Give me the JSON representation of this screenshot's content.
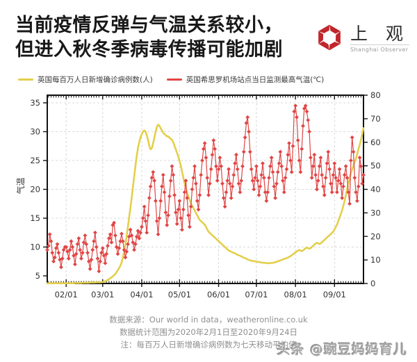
{
  "header": {
    "title_line1": "当前疫情反弹与气温关系较小，",
    "title_line2": "但进入秋冬季病毒传播可能加剧",
    "logo": {
      "cn": "上 观",
      "en": "Shanghai Observer",
      "brand_color": "#c0272d"
    }
  },
  "legend": [
    {
      "label": "英国每百万人日新增确诊病例数(人)",
      "color": "#e3cf4a"
    },
    {
      "label": "英国希思罗机场站点当日监测最高气温(℃)",
      "color": "#e04545"
    }
  ],
  "footer": {
    "line1": "数据来源：Our world in data，weatheronline.co.uk",
    "line2": "数据统计范围为2020年2月1日至2020年9月24日",
    "line3": "注：每百万人日新增确诊病例数为七天移动平均值"
  },
  "watermark": "头条 @豌豆妈妈育儿",
  "chart_data": {
    "type": "line",
    "title": "",
    "xlabel": "",
    "x_tick_labels": [
      "02/01",
      "03/01",
      "04/01",
      "05/01",
      "06/01",
      "07/01",
      "08/01",
      "09/01"
    ],
    "x_tick_day_offsets": [
      0,
      29,
      60,
      90,
      121,
      151,
      182,
      213
    ],
    "x_domain_days": [
      -15,
      236
    ],
    "x_date_range": [
      "2020-02-01",
      "2020-09-24"
    ],
    "grid": true,
    "grid_color": "#cccccc",
    "legend_position": "top-left",
    "left_axis": {
      "label": "气温",
      "ticks": [
        5,
        10,
        15,
        20,
        25,
        30,
        35
      ],
      "units": "℃"
    },
    "right_axis": {
      "label": "",
      "ticks": [
        0,
        10,
        20,
        30,
        40,
        50,
        60,
        70,
        80
      ],
      "range": [
        0,
        80
      ]
    },
    "series": [
      {
        "name": "英国每百万人日新增确诊病例数(人)",
        "axis": "right",
        "color": "#e3cf4a",
        "marker": "none",
        "line_width": 2.6,
        "start_day": -15,
        "values": [
          0.1,
          0.1,
          0.1,
          0.1,
          0.1,
          0.1,
          0.1,
          0.1,
          0.1,
          0.1,
          0.1,
          0.1,
          0.1,
          0.1,
          0.1,
          0.1,
          0.1,
          0.1,
          0.1,
          0.1,
          0.1,
          0.1,
          0.2,
          0.2,
          0.2,
          0.2,
          0.2,
          0.2,
          0.3,
          0.3,
          0.3,
          0.3,
          0.3,
          0.3,
          0.4,
          0.4,
          0.4,
          0.4,
          0.4,
          0.5,
          0.5,
          0.5,
          0.5,
          0.6,
          0.6,
          0.8,
          1.0,
          1.2,
          1.5,
          1.8,
          2.2,
          2.6,
          3.0,
          3.5,
          4.0,
          4.8,
          5.6,
          6.5,
          7.5,
          9.0,
          11.0,
          13.5,
          16.5,
          20.0,
          24.0,
          28.0,
          32.0,
          36.5,
          41.0,
          45.5,
          50.0,
          54.0,
          57.5,
          60.0,
          62.0,
          63.5,
          64.5,
          65.0,
          64.5,
          63.0,
          61.0,
          58.5,
          57.0,
          57.5,
          59.5,
          62.0,
          64.5,
          66.5,
          67.5,
          67.0,
          66.0,
          65.0,
          64.0,
          63.5,
          63.0,
          62.5,
          62.5,
          62.0,
          61.5,
          61.0,
          60.0,
          58.5,
          57.0,
          55.5,
          54.0,
          52.0,
          50.0,
          47.5,
          45.0,
          42.5,
          40.5,
          38.5,
          37.0,
          35.5,
          34.0,
          33.0,
          32.0,
          31.0,
          30.0,
          29.0,
          28.0,
          27.0,
          26.5,
          26.0,
          25.5,
          25.0,
          24.0,
          23.0,
          22.0,
          21.5,
          21.0,
          20.5,
          20.0,
          19.5,
          19.0,
          18.5,
          18.0,
          17.5,
          17.0,
          16.5,
          16.0,
          15.5,
          15.0,
          14.5,
          14.0,
          13.8,
          13.5,
          13.2,
          13.0,
          12.8,
          12.5,
          12.2,
          12.0,
          11.8,
          11.5,
          11.2,
          11.0,
          10.8,
          10.5,
          10.2,
          10.0,
          9.8,
          9.7,
          9.6,
          9.5,
          9.4,
          9.3,
          9.2,
          9.1,
          9.0,
          8.9,
          8.8,
          8.8,
          8.7,
          8.7,
          8.6,
          8.6,
          8.7,
          8.7,
          8.8,
          8.9,
          9.0,
          9.2,
          9.4,
          9.6,
          9.8,
          10.0,
          10.2,
          10.4,
          10.6,
          10.8,
          11.0,
          11.3,
          11.6,
          12.0,
          12.4,
          12.8,
          13.2,
          13.6,
          14.0,
          14.2,
          14.0,
          13.8,
          14.0,
          14.5,
          15.0,
          15.3,
          15.0,
          14.8,
          15.0,
          15.5,
          16.0,
          16.5,
          17.0,
          17.3,
          17.0,
          16.8,
          17.0,
          17.5,
          18.0,
          18.5,
          19.0,
          19.5,
          20.0,
          20.5,
          21.0,
          21.5,
          22.0,
          23.0,
          24.0,
          25.0,
          26.5,
          28.0,
          29.5,
          31.0,
          33.0,
          35.0,
          37.5,
          40.0,
          42.5,
          45.0,
          47.0,
          48.5,
          50.0,
          51.5,
          53.0,
          55.0,
          57.0,
          59.0,
          61.0,
          63.5,
          66.0
        ]
      },
      {
        "name": "英国希思罗机场站点当日监测最高气温(℃)",
        "axis": "left",
        "color": "#e04545",
        "marker": "diamond",
        "line_width": 1.2,
        "start_day": -15,
        "values": [
          9.5,
          10.2,
          12.2,
          11.0,
          9.0,
          7.5,
          8.2,
          9.8,
          10.5,
          9.0,
          7.8,
          6.5,
          8.0,
          9.5,
          10.0,
          10.0,
          9.2,
          8.0,
          9.5,
          11.0,
          10.0,
          8.5,
          7.0,
          8.8,
          10.5,
          11.5,
          9.5,
          8.0,
          9.0,
          10.8,
          12.0,
          10.5,
          9.0,
          7.5,
          6.2,
          7.8,
          9.5,
          11.0,
          12.5,
          10.0,
          8.0,
          5.8,
          7.5,
          9.0,
          9.8,
          8.5,
          7.2,
          8.8,
          10.2,
          11.5,
          12.2,
          10.8,
          13.8,
          14.2,
          12.0,
          10.0,
          8.8,
          9.8,
          11.0,
          12.3,
          11.0,
          9.5,
          8.2,
          9.2,
          10.5,
          11.8,
          13.0,
          12.0,
          10.8,
          9.5,
          10.5,
          11.8,
          12.8,
          11.5,
          12.5,
          13.5,
          15.0,
          17.0,
          14.5,
          12.5,
          15.5,
          18.5,
          20.5,
          22.0,
          23.0,
          21.5,
          18.0,
          14.5,
          12.2,
          15.0,
          18.0,
          20.5,
          22.5,
          19.5,
          16.0,
          13.8,
          15.5,
          18.8,
          21.5,
          24.0,
          22.5,
          19.0,
          16.0,
          14.0,
          16.5,
          18.0,
          15.0,
          13.0,
          16.5,
          19.5,
          21.5,
          18.5,
          15.5,
          13.5,
          17.0,
          20.0,
          22.0,
          24.0,
          21.0,
          18.0,
          16.5,
          19.0,
          22.5,
          25.0,
          27.0,
          28.0,
          25.5,
          22.0,
          19.0,
          21.0,
          23.5,
          26.0,
          28.5,
          27.0,
          24.0,
          21.5,
          23.5,
          25.5,
          24.0,
          21.0,
          18.5,
          17.0,
          19.5,
          21.5,
          23.5,
          21.0,
          18.5,
          20.5,
          22.5,
          24.5,
          26.0,
          23.5,
          21.0,
          19.5,
          21.5,
          24.0,
          26.5,
          29.0,
          31.5,
          32.5,
          30.0,
          26.5,
          23.5,
          21.5,
          20.0,
          22.0,
          24.0,
          21.5,
          19.0,
          20.5,
          22.5,
          24.5,
          22.0,
          19.5,
          18.0,
          19.5,
          22.0,
          24.0,
          25.5,
          23.0,
          20.5,
          18.5,
          21.0,
          23.0,
          24.5,
          26.5,
          24.0,
          21.5,
          19.5,
          22.0,
          23.5,
          26.0,
          28.0,
          25.0,
          23.0,
          27.5,
          33.5,
          34.5,
          32.5,
          28.5,
          25.0,
          23.0,
          27.0,
          31.0,
          34.0,
          34.5,
          33.5,
          32.0,
          30.0,
          25.5,
          22.0,
          24.0,
          26.0,
          22.5,
          20.0,
          21.5,
          24.0,
          25.5,
          22.5,
          20.5,
          19.0,
          22.0,
          24.5,
          26.5,
          23.5,
          21.0,
          19.5,
          22.5,
          24.5,
          22.0,
          19.5,
          21.5,
          23.5,
          21.0,
          18.5,
          20.5,
          22.5,
          24.0,
          22.0,
          19.5,
          17.5,
          25.0,
          29.0,
          26.5,
          22.0,
          19.5,
          18.0,
          20.5,
          25.5,
          24.0,
          21.0,
          22.5
        ]
      }
    ]
  }
}
